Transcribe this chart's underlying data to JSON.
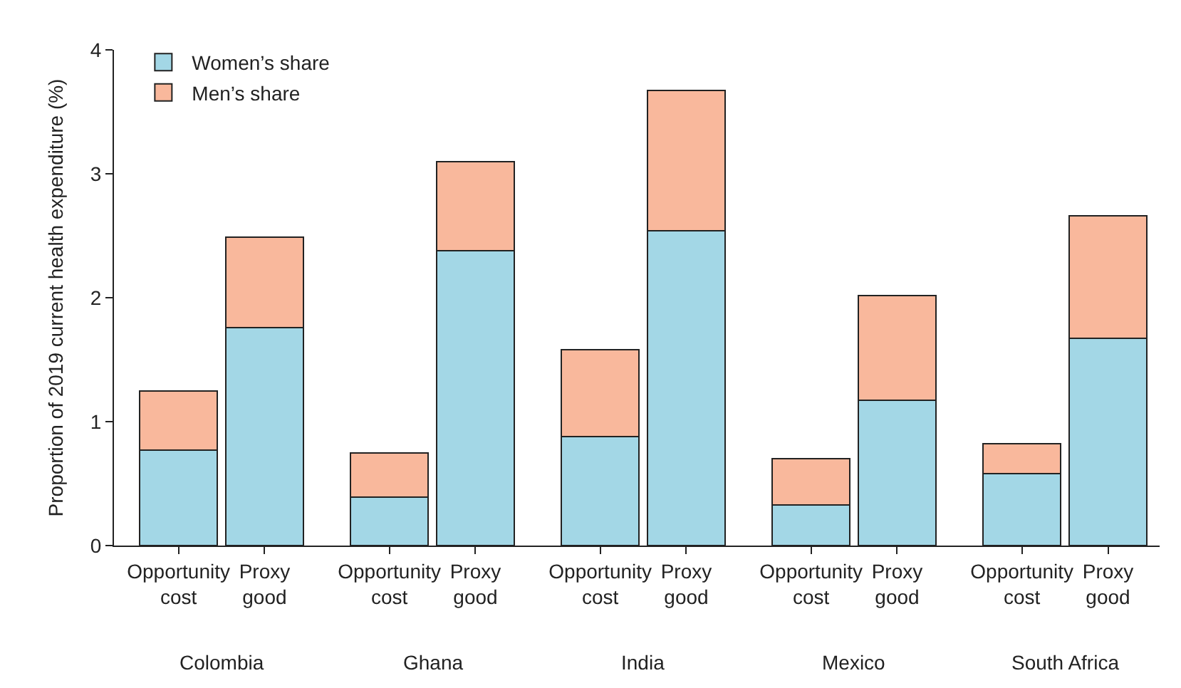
{
  "chart_data": {
    "type": "bar",
    "stacked": true,
    "ylabel": "Proportion of 2019 current health expenditure (%)",
    "categories": [
      "Opportunity cost",
      "Proxy good",
      "Opportunity cost",
      "Proxy good",
      "Opportunity cost",
      "Proxy good",
      "Opportunity cost",
      "Proxy good",
      "Opportunity cost",
      "Proxy good"
    ],
    "series": [
      {
        "name": "Women’s share",
        "color": "#a3d7e6",
        "values": [
          0.77,
          1.76,
          0.39,
          2.38,
          0.88,
          2.54,
          0.33,
          1.17,
          0.58,
          1.67
        ]
      },
      {
        "name": "Men’s share",
        "color": "#f9b89c",
        "values": [
          0.48,
          0.73,
          0.36,
          0.72,
          0.7,
          1.13,
          0.37,
          0.85,
          0.24,
          0.99
        ]
      }
    ],
    "annotations": [
      "Colombia",
      "Ghana",
      "India",
      "Mexico",
      "South Africa"
    ],
    "ylim": [
      0,
      4
    ],
    "yticks": [
      0,
      1,
      2,
      3,
      4
    ],
    "legend": "top left"
  }
}
